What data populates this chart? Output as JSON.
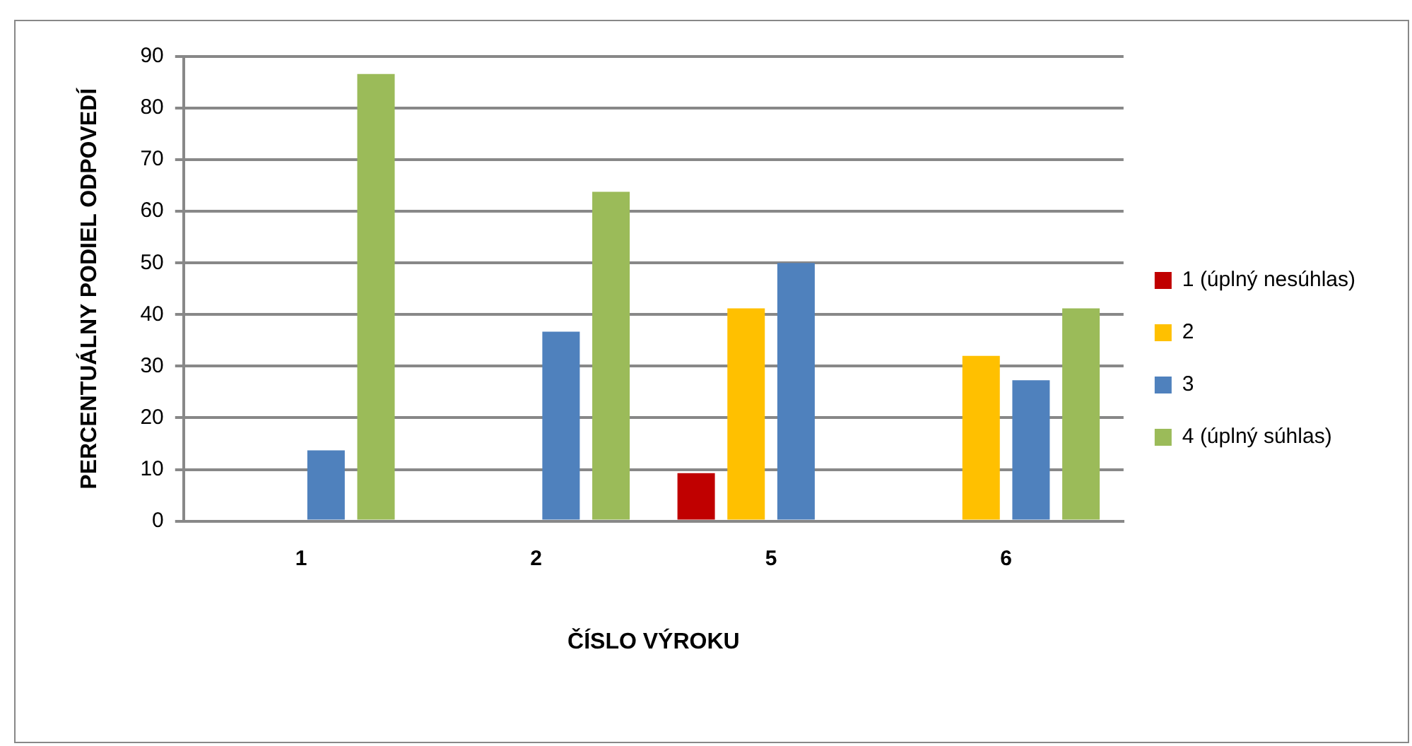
{
  "chart_data": {
    "type": "bar",
    "xlabel": "ČÍSLO VÝROKU",
    "ylabel": "PERCENTUÁLNY PODIEL ODPOVEDÍ",
    "categories": [
      "1",
      "2",
      "5",
      "6"
    ],
    "series": [
      {
        "name": "1 (úplný nesúhlas)",
        "color": "#c00000",
        "values": [
          null,
          null,
          9.3,
          null
        ]
      },
      {
        "name": "2",
        "color": "#ffc000",
        "values": [
          null,
          null,
          41.2,
          32
        ]
      },
      {
        "name": "3",
        "color": "#4f81bd",
        "values": [
          13.7,
          36.7,
          50,
          27.3
        ]
      },
      {
        "name": "4 (úplný súhlas)",
        "color": "#9bbb59",
        "values": [
          86.6,
          63.8,
          null,
          41.2
        ]
      }
    ],
    "ylim": [
      0,
      90
    ],
    "yticks": [
      0,
      10,
      20,
      30,
      40,
      50,
      60,
      70,
      80,
      90
    ],
    "grid": "y",
    "legend": "right"
  }
}
